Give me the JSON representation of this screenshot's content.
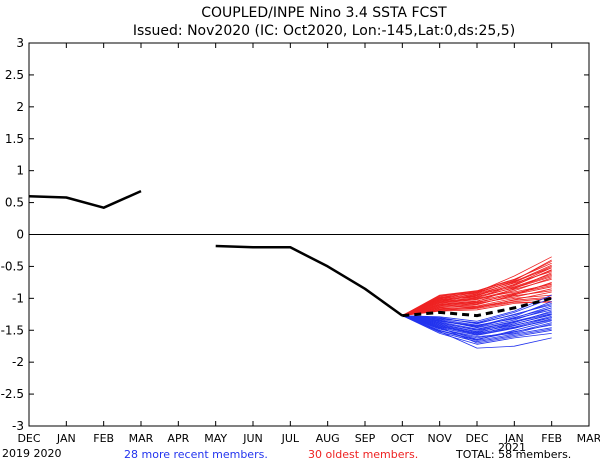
{
  "chart_data": {
    "type": "line",
    "title": "COUPLED/INPE Nino 3.4 SSTA FCST",
    "subtitle": "Issued: Nov2020 (IC: Oct2020, Lon:-145,Lat:0,ds:25,5)",
    "xlabel": "",
    "ylabel": "",
    "ylim": [
      -3,
      3
    ],
    "yticks": [
      "3",
      "2.5",
      "2",
      "1.5",
      "1",
      "0.5",
      "0",
      "-0.5",
      "-1",
      "-1.5",
      "-2",
      "-2.5",
      "-3"
    ],
    "categories": [
      "DEC",
      "JAN",
      "FEB",
      "MAR",
      "APR",
      "MAY",
      "JUN",
      "JUL",
      "AUG",
      "SEP",
      "OCT",
      "NOV",
      "DEC",
      "JAN",
      "FEB",
      "MAR"
    ],
    "year_labels": {
      "start": "2019 2020",
      "end": "2021"
    },
    "legend": {
      "recent": "28 more recent members.",
      "oldest": "30 oldest members.",
      "total": "TOTAL: 58 members."
    },
    "colors": {
      "observed": "#000000",
      "recent": "#2233ee",
      "oldest": "#ee2222",
      "mean": "#000000",
      "axis": "#000000"
    },
    "observed": [
      {
        "points": [
          [
            0,
            0.6
          ],
          [
            1,
            0.58
          ],
          [
            2,
            0.42
          ],
          [
            3,
            0.68
          ]
        ]
      },
      {
        "points": [
          [
            5,
            -0.18
          ],
          [
            6,
            -0.2
          ],
          [
            7,
            -0.2
          ],
          [
            8,
            -0.5
          ],
          [
            9,
            -0.85
          ],
          [
            10,
            -1.27
          ]
        ]
      }
    ],
    "ensemble_mean": [
      [
        10,
        -1.27
      ],
      [
        11,
        -1.22
      ],
      [
        12,
        -1.27
      ],
      [
        13,
        -1.15
      ],
      [
        14,
        -1.0
      ]
    ],
    "recent_members": [
      [
        -1.27,
        -1.48,
        -1.6,
        -1.55,
        -1.4
      ],
      [
        -1.27,
        -1.52,
        -1.78,
        -1.75,
        -1.62
      ],
      [
        -1.27,
        -1.42,
        -1.55,
        -1.45,
        -1.3
      ],
      [
        -1.27,
        -1.35,
        -1.45,
        -1.3,
        -1.15
      ],
      [
        -1.27,
        -1.45,
        -1.7,
        -1.6,
        -1.5
      ],
      [
        -1.27,
        -1.5,
        -1.65,
        -1.5,
        -1.35
      ],
      [
        -1.27,
        -1.3,
        -1.4,
        -1.25,
        -1.1
      ],
      [
        -1.27,
        -1.38,
        -1.5,
        -1.4,
        -1.25
      ],
      [
        -1.27,
        -1.55,
        -1.72,
        -1.62,
        -1.55
      ],
      [
        -1.27,
        -1.4,
        -1.52,
        -1.38,
        -1.2
      ],
      [
        -1.27,
        -1.33,
        -1.42,
        -1.32,
        -1.18
      ],
      [
        -1.27,
        -1.46,
        -1.58,
        -1.47,
        -1.32
      ],
      [
        -1.27,
        -1.36,
        -1.44,
        -1.28,
        -1.05
      ],
      [
        -1.27,
        -1.48,
        -1.62,
        -1.52,
        -1.42
      ],
      [
        -1.27,
        -1.32,
        -1.38,
        -1.22,
        -1.0
      ],
      [
        -1.27,
        -1.43,
        -1.56,
        -1.43,
        -1.28
      ],
      [
        -1.27,
        -1.37,
        -1.48,
        -1.36,
        -1.22
      ],
      [
        -1.27,
        -1.51,
        -1.66,
        -1.56,
        -1.46
      ],
      [
        -1.27,
        -1.29,
        -1.36,
        -1.2,
        -0.95
      ],
      [
        -1.27,
        -1.41,
        -1.53,
        -1.42,
        -1.3
      ],
      [
        -1.27,
        -1.34,
        -1.46,
        -1.34,
        -1.15
      ],
      [
        -1.27,
        -1.47,
        -1.64,
        -1.53,
        -1.38
      ],
      [
        -1.27,
        -1.31,
        -1.39,
        -1.26,
        -1.08
      ],
      [
        -1.27,
        -1.44,
        -1.57,
        -1.46,
        -1.34
      ],
      [
        -1.27,
        -1.39,
        -1.49,
        -1.37,
        -1.24
      ],
      [
        -1.27,
        -1.53,
        -1.68,
        -1.58,
        -1.48
      ],
      [
        -1.27,
        -1.35,
        -1.43,
        -1.31,
        -1.12
      ],
      [
        -1.27,
        -1.45,
        -1.54,
        -1.4,
        -1.26
      ]
    ],
    "oldest_members": [
      [
        -1.27,
        -1.0,
        -0.9,
        -0.65,
        -0.35
      ],
      [
        -1.27,
        -1.05,
        -0.95,
        -0.75,
        -0.5
      ],
      [
        -1.27,
        -0.95,
        -0.88,
        -0.7,
        -0.45
      ],
      [
        -1.27,
        -1.1,
        -1.05,
        -0.85,
        -0.6
      ],
      [
        -1.27,
        -1.02,
        -0.98,
        -0.8,
        -0.55
      ],
      [
        -1.27,
        -1.15,
        -1.1,
        -0.95,
        -0.75
      ],
      [
        -1.27,
        -0.98,
        -0.92,
        -0.72,
        -0.4
      ],
      [
        -1.27,
        -1.08,
        -1.02,
        -0.88,
        -0.68
      ],
      [
        -1.27,
        -1.12,
        -1.08,
        -0.98,
        -0.85
      ],
      [
        -1.27,
        -1.04,
        -0.96,
        -0.78,
        -0.52
      ],
      [
        -1.27,
        -1.18,
        -1.15,
        -1.02,
        -0.9
      ],
      [
        -1.27,
        -1.0,
        -0.94,
        -0.82,
        -0.62
      ],
      [
        -1.27,
        -1.06,
        -1.0,
        -0.9,
        -0.78
      ],
      [
        -1.27,
        -1.2,
        -1.18,
        -1.08,
        -1.05
      ],
      [
        -1.27,
        -0.97,
        -0.9,
        -0.74,
        -0.48
      ],
      [
        -1.27,
        -1.09,
        -1.04,
        -0.92,
        -0.8
      ],
      [
        -1.27,
        -1.14,
        -1.12,
        -1.0,
        -0.95
      ],
      [
        -1.27,
        -1.01,
        -0.93,
        -0.76,
        -0.58
      ],
      [
        -1.27,
        -1.07,
        -1.01,
        -0.86,
        -0.7
      ],
      [
        -1.27,
        -1.16,
        -1.14,
        -1.05,
        -1.0
      ],
      [
        -1.27,
        -0.99,
        -0.91,
        -0.73,
        -0.52
      ],
      [
        -1.27,
        -1.11,
        -1.06,
        -0.94,
        -0.82
      ],
      [
        -1.27,
        -1.03,
        -0.97,
        -0.84,
        -0.66
      ],
      [
        -1.27,
        -1.13,
        -1.09,
        -0.96,
        -0.88
      ],
      [
        -1.27,
        -0.96,
        -0.89,
        -0.71,
        -0.42
      ],
      [
        -1.27,
        -1.19,
        -1.16,
        -1.06,
        -1.06
      ],
      [
        -1.27,
        -1.05,
        -0.99,
        -0.83,
        -0.64
      ],
      [
        -1.27,
        -1.1,
        -1.07,
        -0.93,
        -0.76
      ],
      [
        -1.27,
        -1.02,
        -0.95,
        -0.79,
        -0.56
      ],
      [
        -1.27,
        -1.17,
        -1.13,
        -1.03,
        -0.98
      ]
    ]
  }
}
